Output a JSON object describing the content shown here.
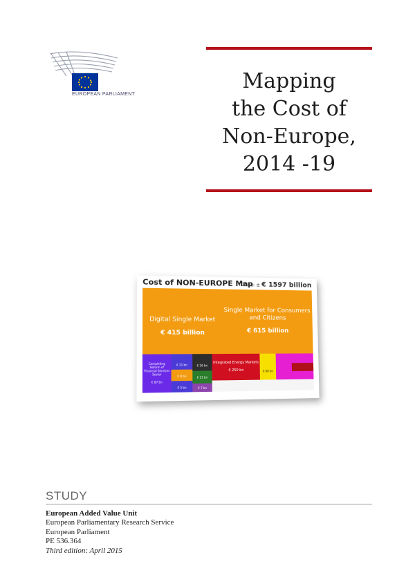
{
  "logo": {
    "text": "EUROPEAN PARLIAMENT"
  },
  "title": {
    "lines": [
      "Mapping",
      "the Cost of",
      "Non-Europe,",
      "2014 -19"
    ]
  },
  "map_image": {
    "heading": "Cost of NON-EUROPE Map",
    "total_prefix": "TOTAL: ±",
    "total_value": "€ 1597 billion",
    "blocks": {
      "digital_title": "Digital Single Market",
      "digital_value": "€ 415 billion",
      "single_title": "Single Market for Consumers and Citizens",
      "single_value": "€ 615 billion",
      "energy_title": "Integrated Energy Markets",
      "energy_value": "€ 250 bn",
      "financial_title": "Completing Reform of Financial Services Sector",
      "financial_value": "€ 87 bn",
      "banking_value": "€ 31 bn",
      "transport_value": "€ 60 bn",
      "defence_value": "€ 26 bn",
      "legislation_value": "€ 21 bn",
      "fraud_value": "€ 9 bn",
      "employment_value": "€ 5 bn",
      "other_value": "€ 7 bn"
    }
  },
  "study": {
    "label": "STUDY",
    "unit": "European Added Value Unit",
    "service": "European Parliamentary Research Service",
    "institution": "European Parliament",
    "reference": "PE 536.364",
    "edition": "Third edition: April 2015"
  },
  "colors": {
    "accent_rule": "#b5121b",
    "eu_blue": "#003399",
    "eu_star": "#ffcc00"
  }
}
